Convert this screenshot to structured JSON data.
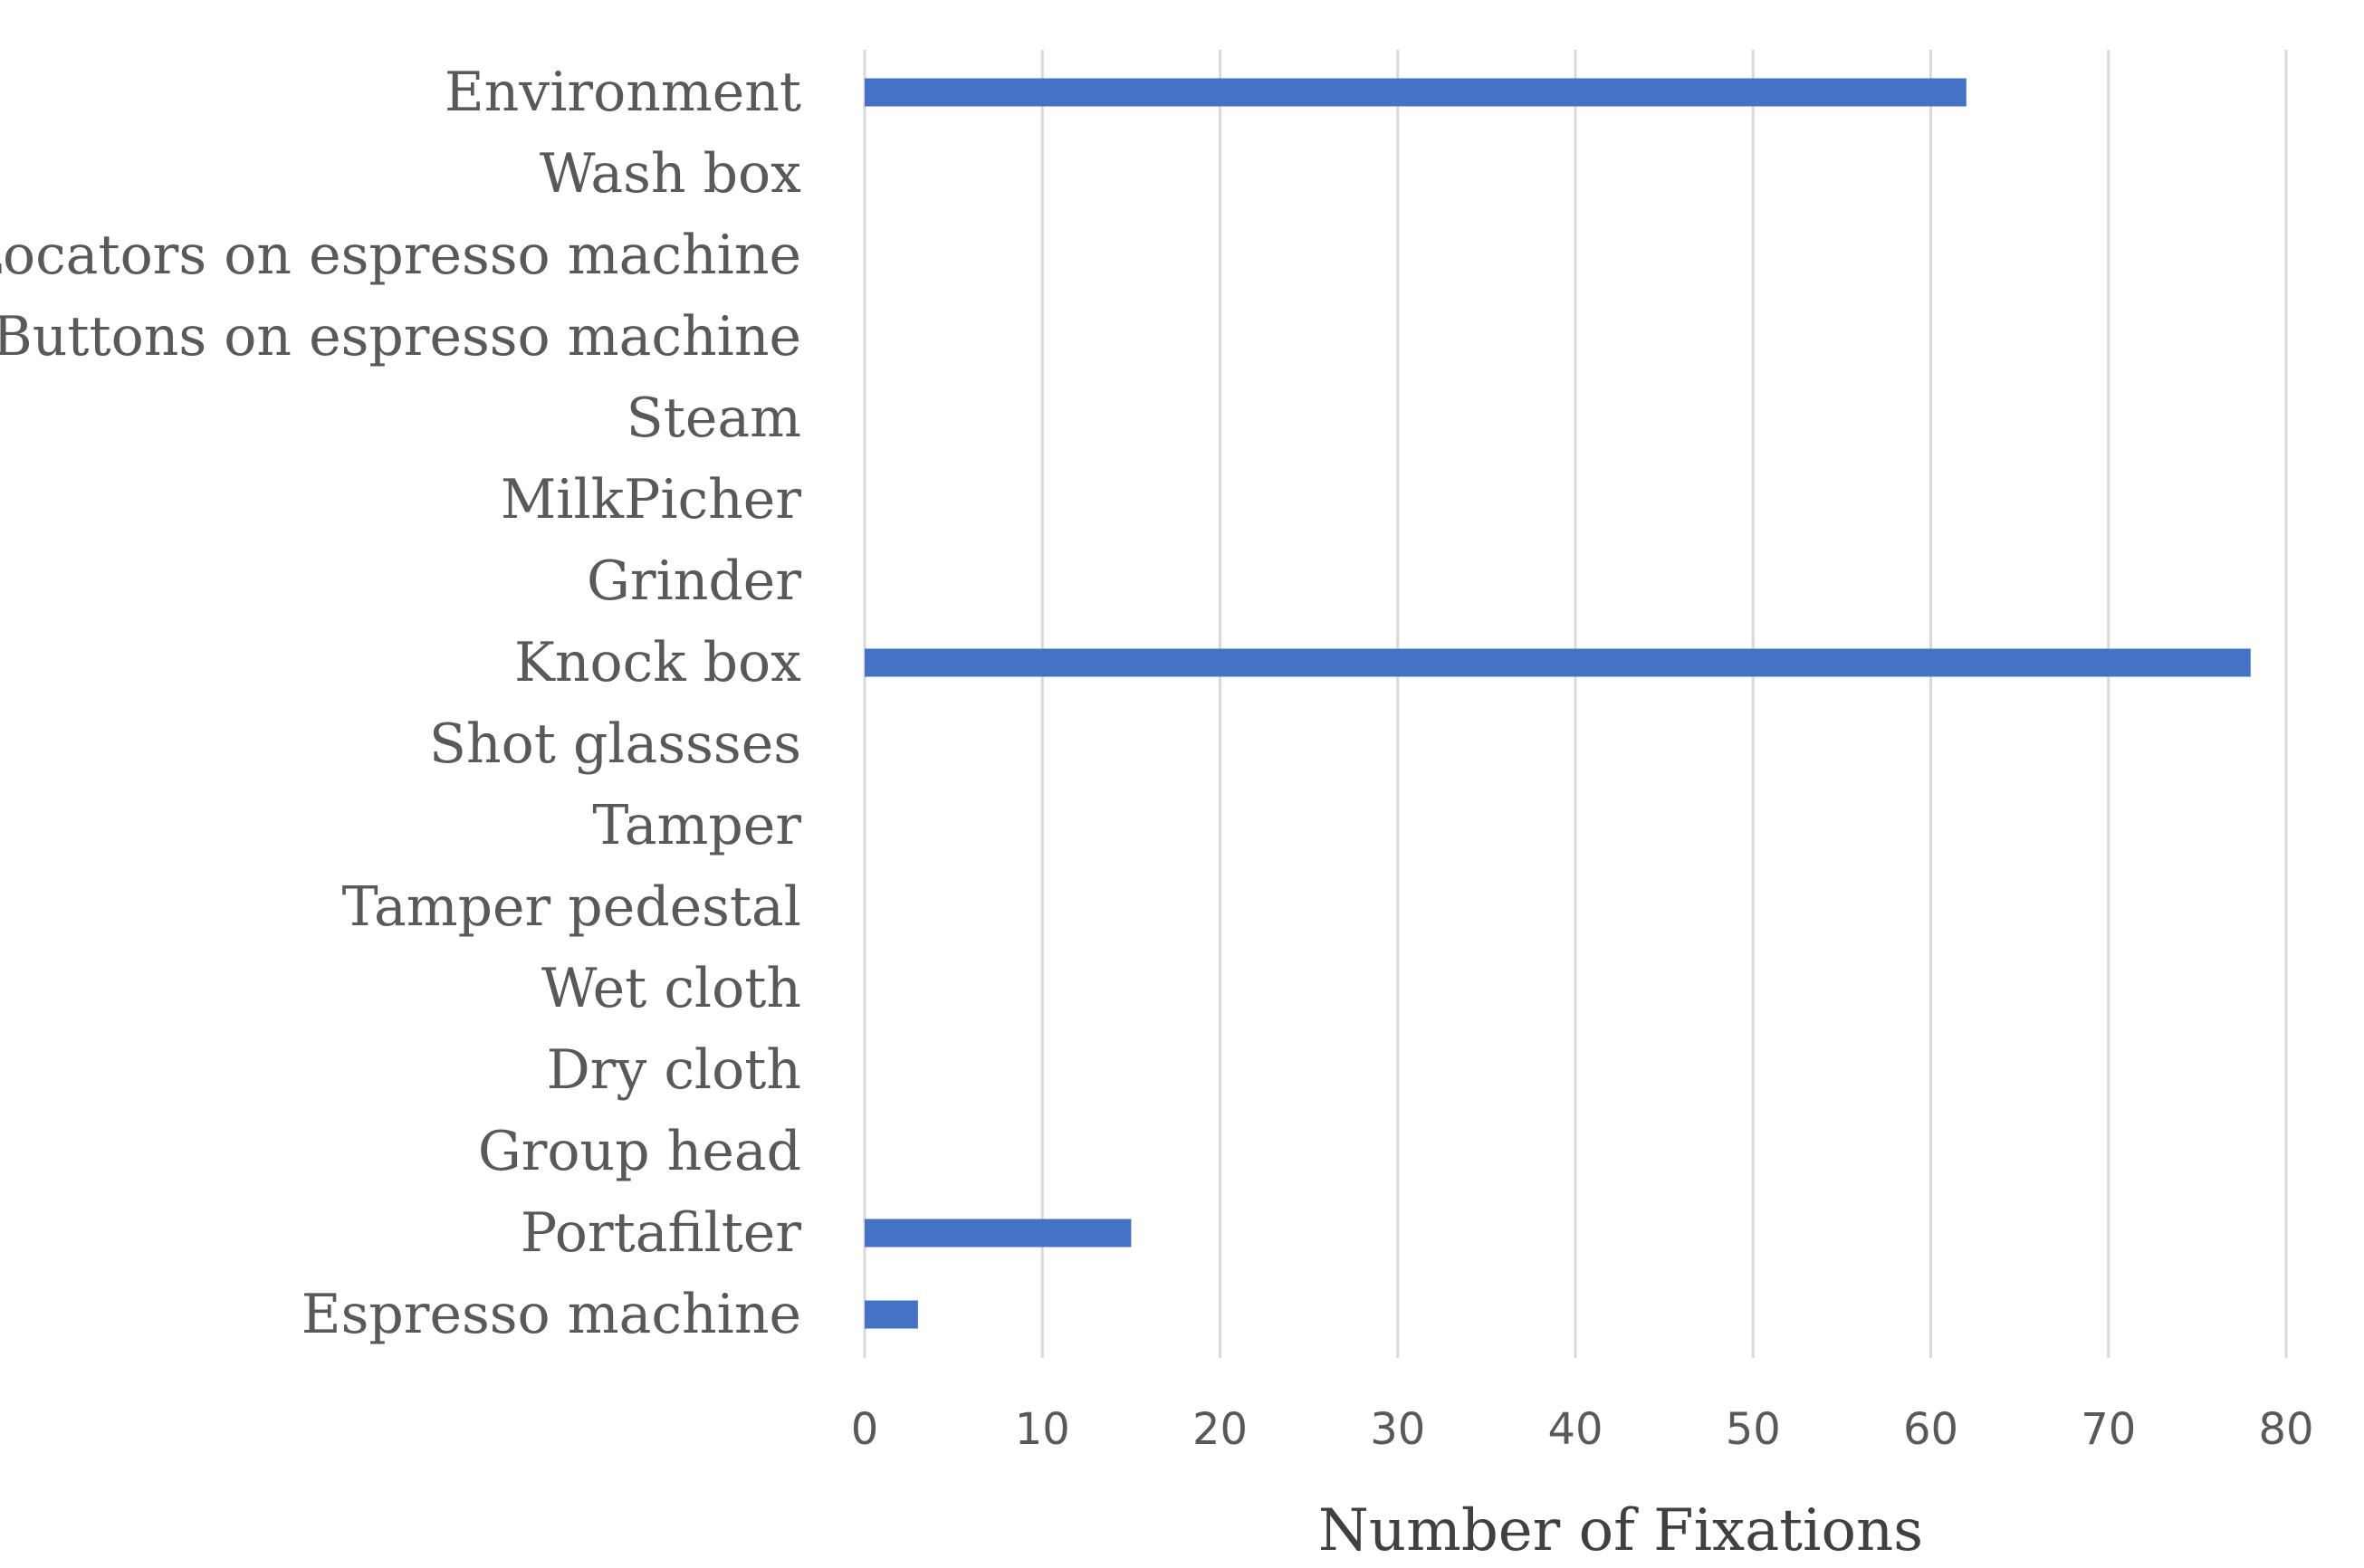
{
  "chart_data": {
    "type": "bar",
    "orientation": "horizontal",
    "categories": [
      "Environment",
      "Wash box",
      "Locators on espresso machine",
      "Buttons on espresso machine",
      "Steam",
      "MilkPicher",
      "Grinder",
      "Knock box",
      "Shot glassses",
      "Tamper",
      "Tamper pedestal",
      "Wet cloth",
      "Dry cloth",
      "Group head",
      "Portafilter",
      "Espresso machine"
    ],
    "values": [
      62,
      0,
      0,
      0,
      0,
      0,
      0,
      78,
      0,
      0,
      0,
      0,
      0,
      0,
      15,
      3
    ],
    "xlabel": "Number of Fixations",
    "ylabel": "",
    "xlim": [
      0,
      80
    ],
    "xticks": [
      "0",
      "10",
      "20",
      "30",
      "40",
      "50",
      "60",
      "70",
      "80"
    ],
    "grid": "vertical",
    "legend": "none",
    "bar_color": "#4472c4"
  }
}
